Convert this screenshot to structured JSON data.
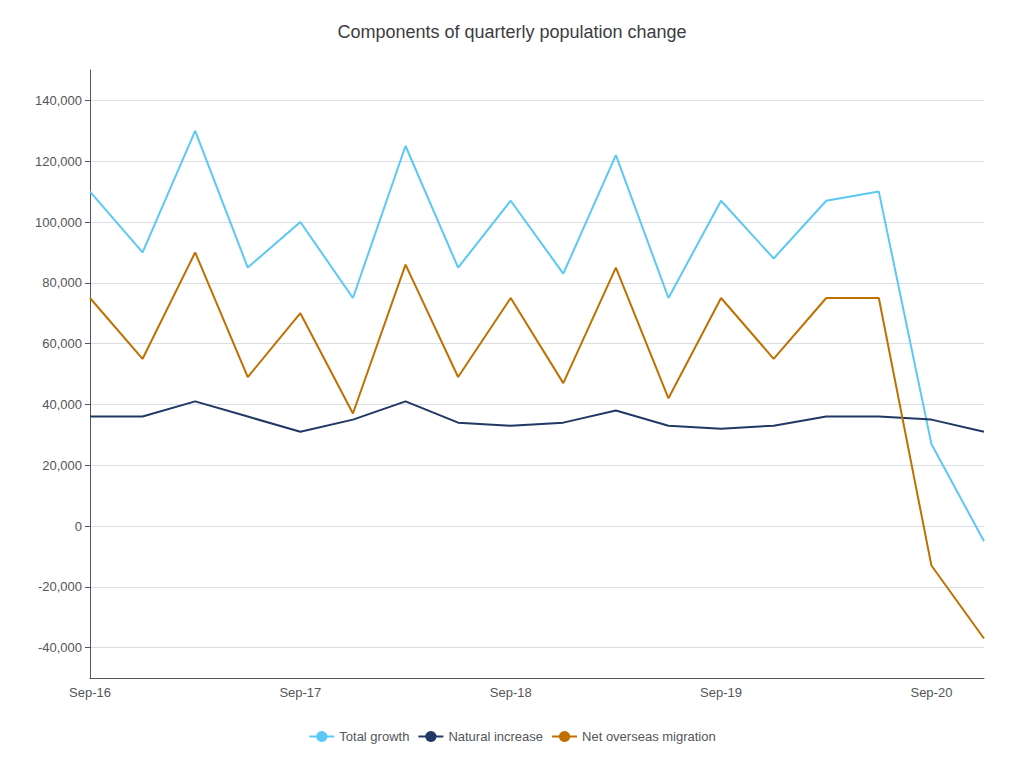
{
  "chart_data": {
    "type": "line",
    "title": "Components of quarterly population change",
    "categories": [
      "Sep-16",
      null,
      null,
      null,
      "Sep-17",
      null,
      null,
      null,
      "Sep-18",
      null,
      null,
      null,
      "Sep-19",
      null,
      null,
      null,
      "Sep-20",
      null
    ],
    "series": [
      {
        "name": "Total growth",
        "color": "#5bc8f5",
        "values": [
          110000,
          90000,
          130000,
          85000,
          100000,
          75000,
          125000,
          85000,
          107000,
          83000,
          122000,
          75000,
          107000,
          88000,
          107000,
          110000,
          27000,
          -5000
        ]
      },
      {
        "name": "Natural increase",
        "color": "#1f3864",
        "values": [
          36000,
          36000,
          41000,
          36000,
          31000,
          35000,
          41000,
          34000,
          33000,
          34000,
          38000,
          33000,
          32000,
          33000,
          36000,
          36000,
          35000,
          31000
        ]
      },
      {
        "name": "Net overseas migration",
        "color": "#c07000",
        "values": [
          75000,
          55000,
          90000,
          49000,
          70000,
          37000,
          86000,
          49000,
          75000,
          47000,
          85000,
          42000,
          75000,
          55000,
          75000,
          75000,
          -13000,
          -37000
        ]
      }
    ],
    "ylim": [
      -50000,
      150000
    ],
    "yticks": [
      {
        "value": -40000,
        "label": "-40,000"
      },
      {
        "value": -20000,
        "label": "-20,000"
      },
      0,
      {
        "value": 20000,
        "label": "20,000"
      },
      {
        "value": 40000,
        "label": "40,000"
      },
      {
        "value": 60000,
        "label": "60,000"
      },
      {
        "value": 80000,
        "label": "80,000"
      },
      {
        "value": 100000,
        "label": "100,000"
      },
      {
        "value": 120000,
        "label": "120,000"
      },
      {
        "value": 140000,
        "label": "140,000"
      }
    ],
    "grid": true,
    "legend": "bottom"
  }
}
